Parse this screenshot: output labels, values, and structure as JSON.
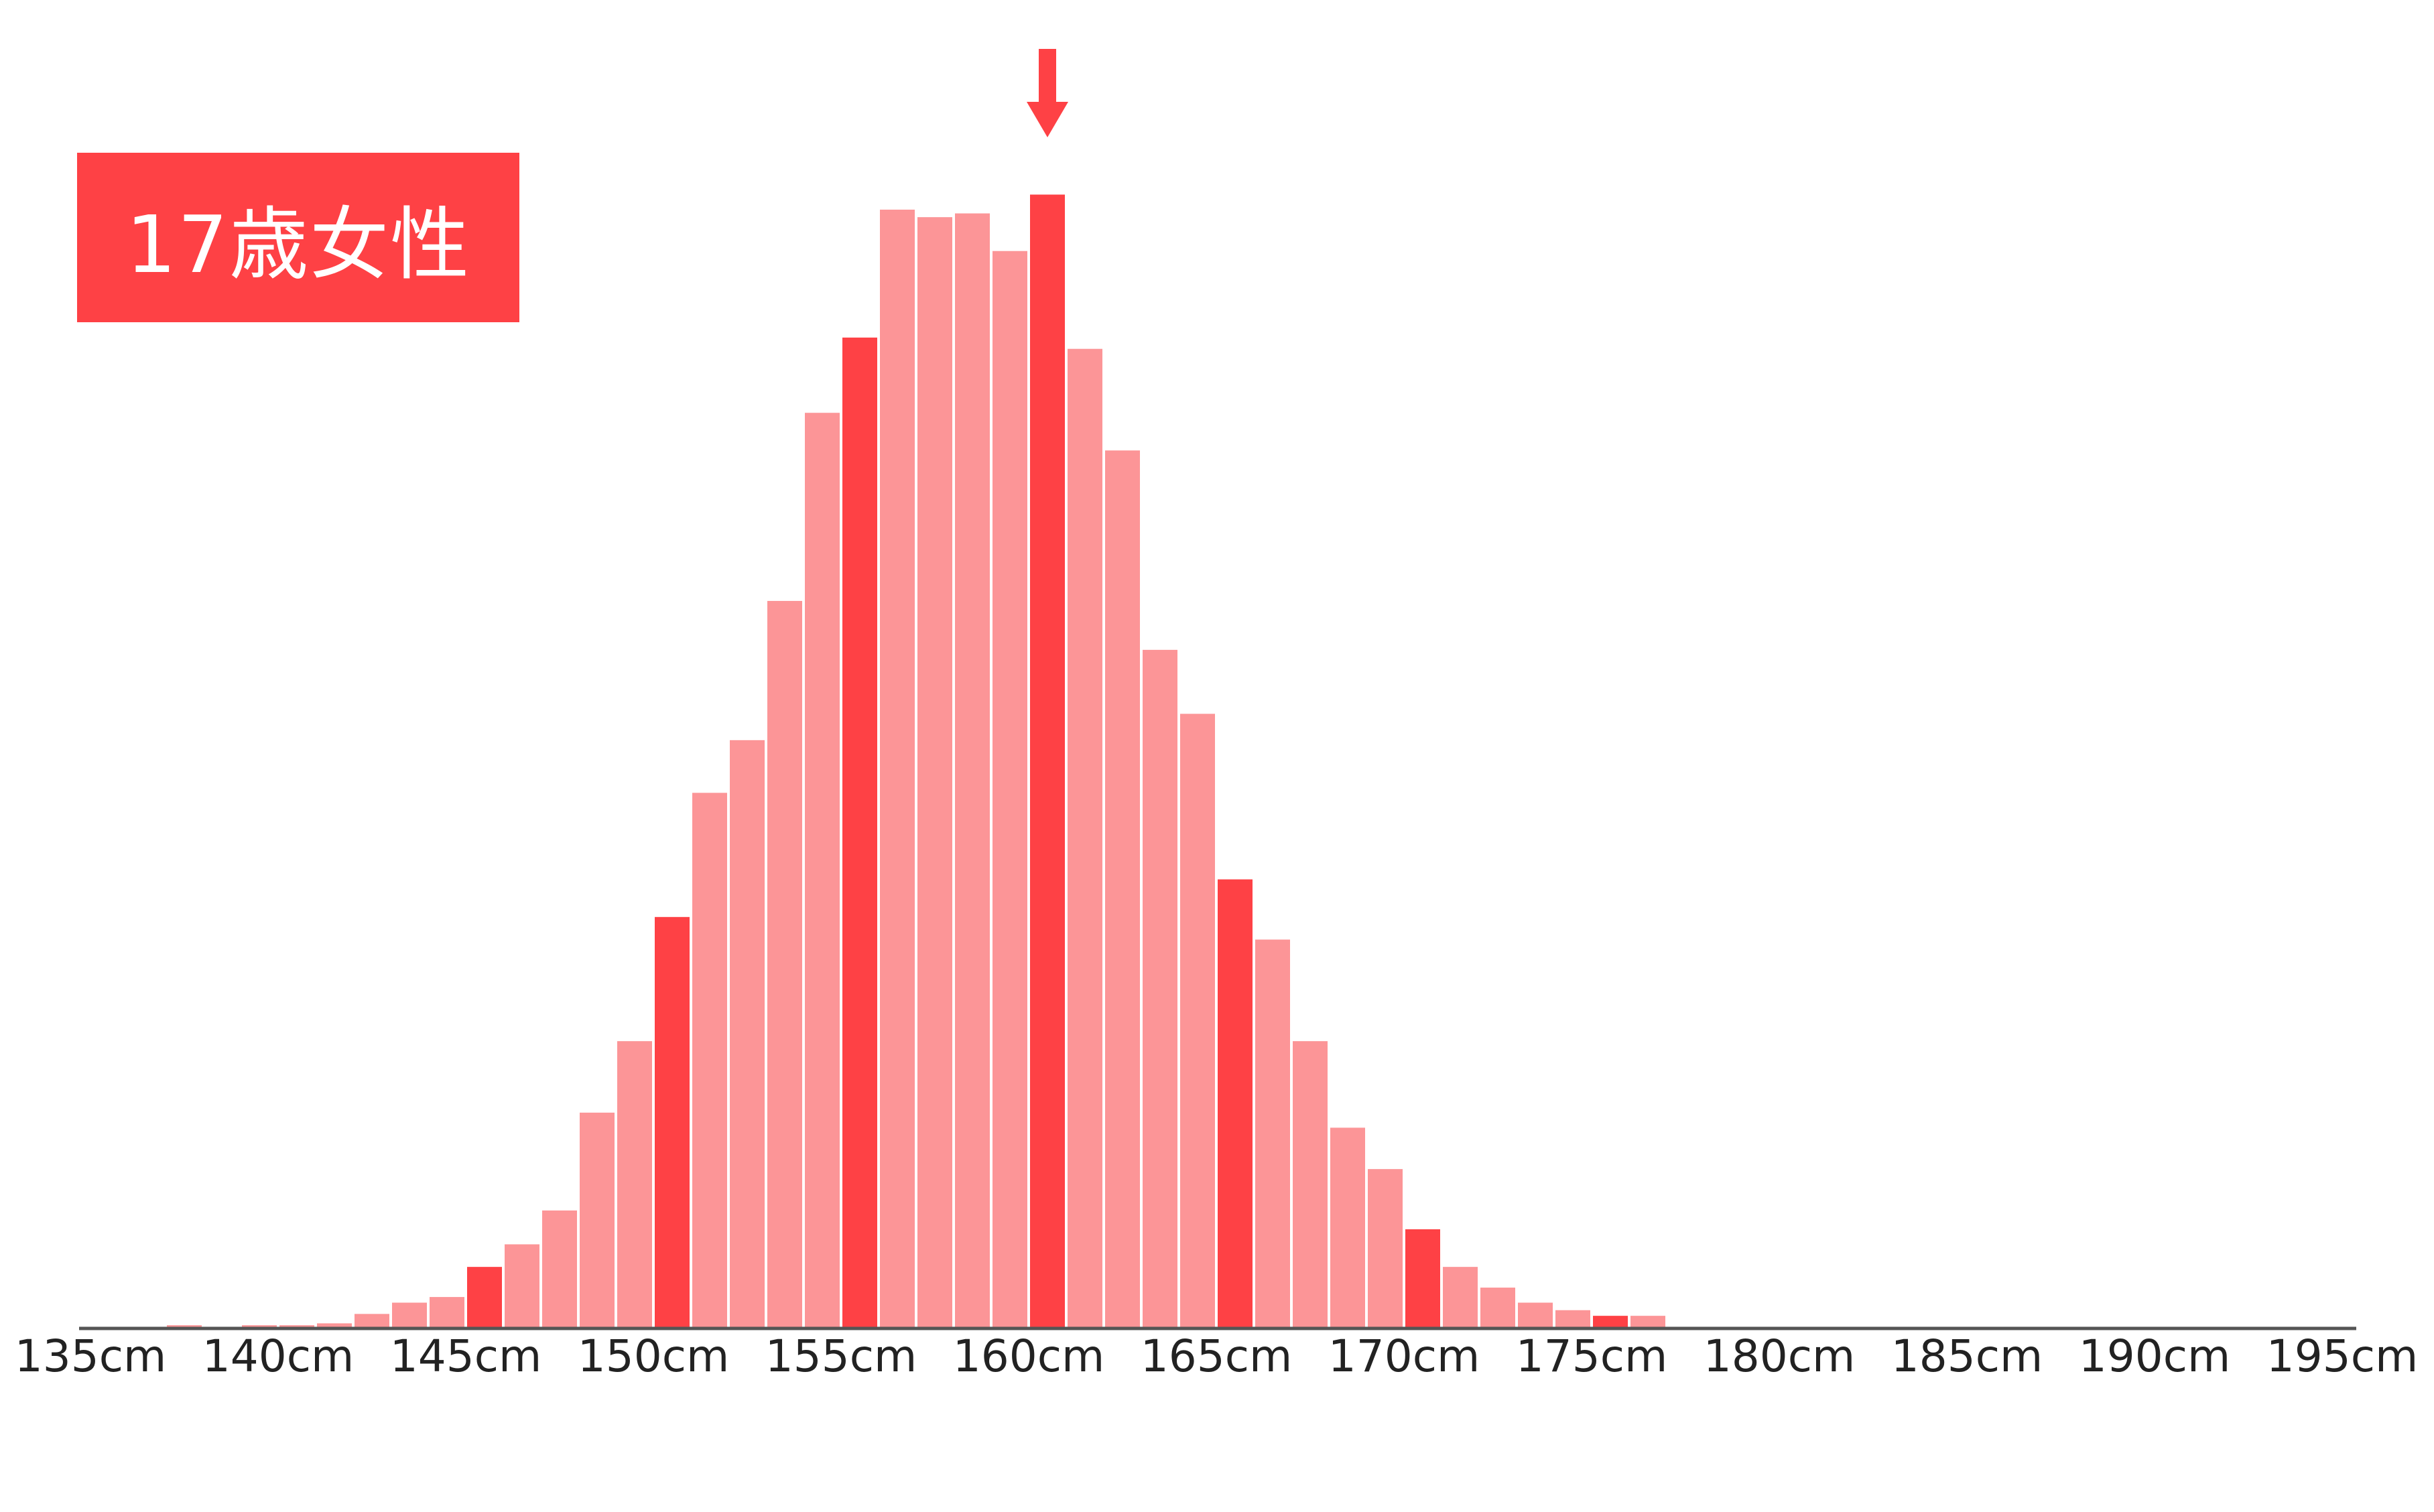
{
  "title": "17歳女性",
  "colors": {
    "highlight": "#fe4145",
    "normal": "#fc9597",
    "axis": "#555555",
    "arrow": "#fe4145"
  },
  "chart_data": {
    "type": "bar",
    "title": "17歳女性",
    "xlabel": "",
    "ylabel": "",
    "x_unit": "cm",
    "bin_width_cm": 1,
    "xlim": [
      135,
      195
    ],
    "ylim": [
      0,
      30.5
    ],
    "grid": false,
    "xticks": [
      "135cm",
      "140cm",
      "145cm",
      "150cm",
      "155cm",
      "160cm",
      "165cm",
      "170cm",
      "175cm",
      "180cm",
      "185cm",
      "190cm",
      "195cm"
    ],
    "bins_start_cm": [
      137,
      138,
      139,
      140,
      141,
      142,
      143,
      144,
      145,
      146,
      147,
      148,
      149,
      150,
      151,
      152,
      153,
      154,
      155,
      156,
      157,
      158,
      159,
      160,
      161,
      162,
      163,
      164,
      165,
      166,
      167,
      168,
      169,
      170,
      171,
      172,
      173,
      174,
      175,
      176
    ],
    "values": [
      0.05,
      0,
      0.05,
      0.05,
      0.1,
      0.35,
      0.65,
      0.8,
      1.6,
      2.2,
      3.1,
      5.7,
      7.6,
      10.9,
      14.2,
      15.6,
      19.3,
      24.3,
      26.3,
      29.7,
      29.5,
      29.6,
      28.6,
      30.1,
      26.0,
      23.3,
      18.0,
      16.3,
      11.9,
      10.3,
      7.6,
      5.3,
      4.2,
      2.6,
      1.6,
      1.05,
      0.65,
      0.45,
      0.3,
      0.3
    ],
    "highlighted_bins_cm": [
      145,
      150,
      155,
      160,
      165,
      170,
      175
    ],
    "marker": {
      "type": "arrow",
      "at_bin_cm": 160
    }
  }
}
